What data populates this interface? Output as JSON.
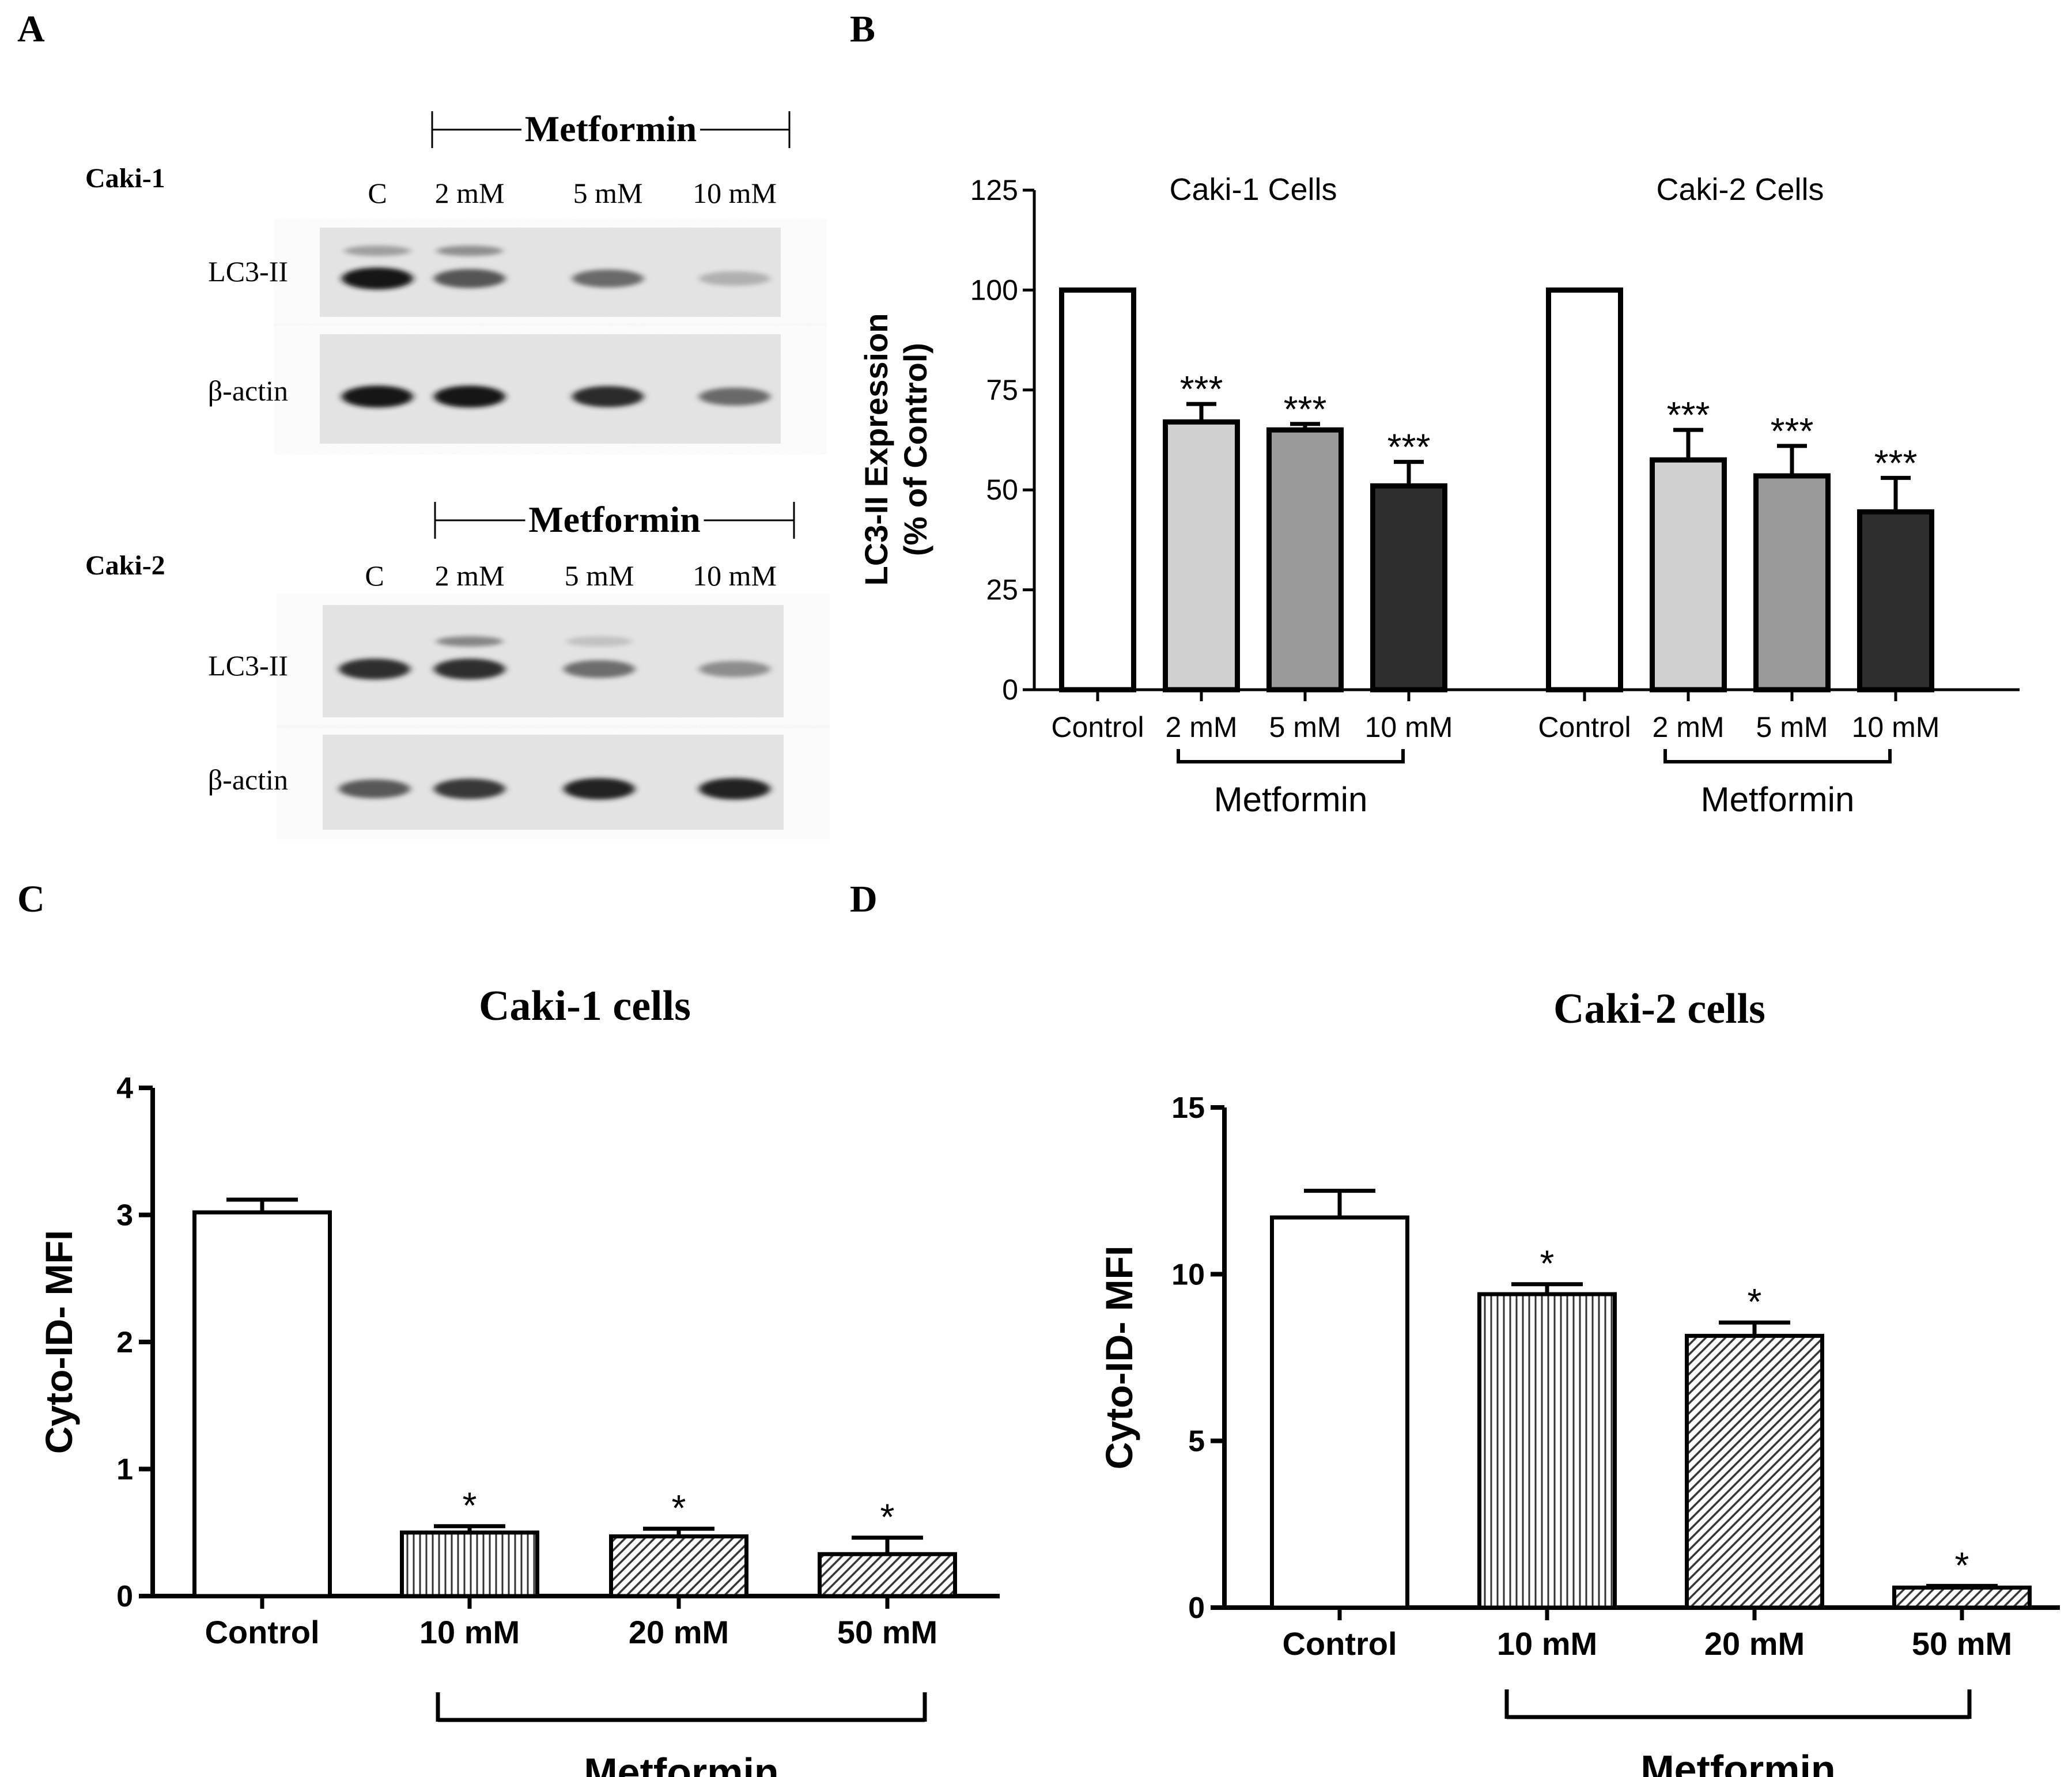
{
  "panels": {
    "A": {
      "label": "A",
      "blots": [
        {
          "cell_line": "Caki-1",
          "treatment": "Metformin",
          "lanes": [
            "C",
            "2 mM",
            "5 mM",
            "10 mM"
          ],
          "rows": [
            {
              "name": "LC3-II",
              "band_intensity": [
                1.0,
                0.72,
                0.62,
                0.28
              ],
              "upper_band": [
                0.45,
                0.55,
                0.0,
                0.0
              ]
            },
            {
              "name": "β-actin",
              "band_intensity": [
                1.0,
                1.0,
                0.92,
                0.62
              ],
              "upper_band": [
                0,
                0,
                0,
                0
              ]
            }
          ]
        },
        {
          "cell_line": "Caki-2",
          "treatment": "Metformin",
          "lanes": [
            "C",
            "2 mM",
            "5 mM",
            "10 mM"
          ],
          "rows": [
            {
              "name": "LC3-II",
              "band_intensity": [
                0.9,
                0.9,
                0.6,
                0.45
              ],
              "upper_band": [
                0.0,
                0.6,
                0.25,
                0.0
              ]
            },
            {
              "name": "β-actin",
              "band_intensity": [
                0.7,
                0.85,
                0.95,
                0.95
              ],
              "upper_band": [
                0,
                0,
                0,
                0
              ]
            }
          ]
        }
      ]
    },
    "B": {
      "label": "B"
    },
    "C": {
      "label": "C"
    },
    "D": {
      "label": "D"
    }
  },
  "colors": {
    "white": "#ffffff",
    "light": "#d0d0d0",
    "mid": "#999999",
    "dark": "#2e2e2e",
    "axis": "#000000"
  },
  "chart_data": [
    {
      "panel": "B",
      "type": "bar",
      "title": "",
      "ylabel_line1": "LC3-II Expression",
      "ylabel_line2": "(% of Control)",
      "xlabel": "",
      "ylim": [
        0,
        125
      ],
      "yticks": [
        0,
        25,
        50,
        75,
        100,
        125
      ],
      "groups": [
        {
          "title": "Caki-1 Cells",
          "categories": [
            "Control",
            "2 mM",
            "5 mM",
            "10 mM"
          ],
          "values": [
            100,
            67,
            65,
            51
          ],
          "errors": [
            0,
            4.5,
            1.5,
            6
          ],
          "significance": [
            "",
            "***",
            "***",
            "***"
          ],
          "fills": [
            "white",
            "light",
            "mid",
            "dark"
          ],
          "bracket_label": "Metformin"
        },
        {
          "title": "Caki-2 Cells",
          "categories": [
            "Control",
            "2 mM",
            "5 mM",
            "10 mM"
          ],
          "values": [
            100,
            57.5,
            53.5,
            44.5
          ],
          "errors": [
            0,
            7.5,
            7.5,
            8.5
          ],
          "significance": [
            "",
            "***",
            "***",
            "***"
          ],
          "fills": [
            "white",
            "light",
            "mid",
            "dark"
          ],
          "bracket_label": "Metformin"
        }
      ]
    },
    {
      "panel": "C",
      "type": "bar",
      "title": "Caki-1 cells",
      "ylabel": "Cyto-ID- MFI",
      "xlabel": "Metformin",
      "ylim": [
        0,
        4
      ],
      "yticks": [
        0,
        1,
        2,
        3,
        4
      ],
      "categories": [
        "Control",
        "10 mM",
        "20 mM",
        "50 mM"
      ],
      "values": [
        3.02,
        0.5,
        0.47,
        0.33
      ],
      "errors": [
        0.1,
        0.05,
        0.06,
        0.13
      ],
      "significance": [
        "",
        "*",
        "*",
        "*"
      ],
      "patterns": [
        "none",
        "vertical",
        "diagonal",
        "diagonal"
      ]
    },
    {
      "panel": "D",
      "type": "bar",
      "title": "Caki-2 cells",
      "ylabel": "Cyto-ID- MFI",
      "xlabel": "Metformin",
      "ylim": [
        0,
        15
      ],
      "yticks": [
        0,
        5,
        10,
        15
      ],
      "categories": [
        "Control",
        "10 mM",
        "20 mM",
        "50 mM"
      ],
      "values": [
        11.7,
        9.4,
        8.15,
        0.6
      ],
      "errors": [
        0.8,
        0.3,
        0.4,
        0.05
      ],
      "significance": [
        "",
        "*",
        "*",
        "*"
      ],
      "patterns": [
        "none",
        "vertical",
        "diagonal",
        "diagonal"
      ]
    }
  ]
}
